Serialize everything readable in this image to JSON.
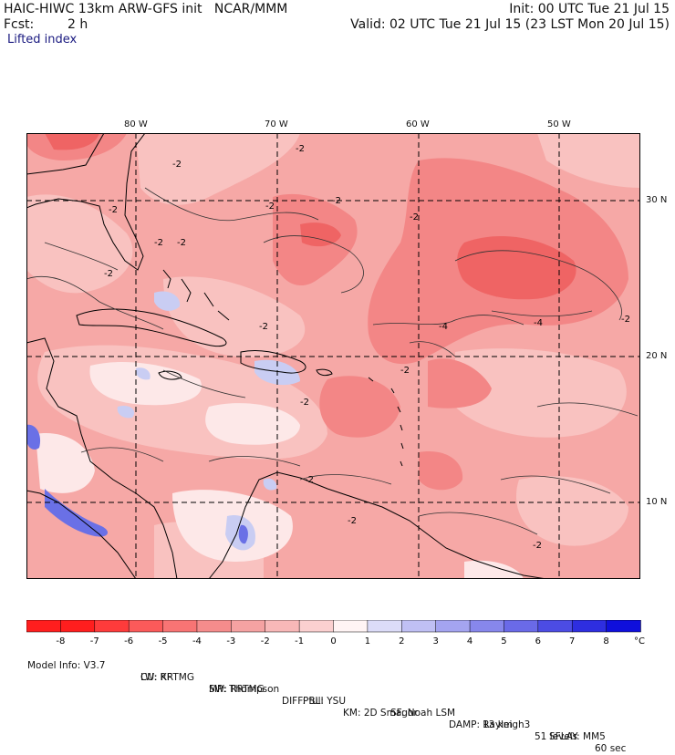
{
  "header": {
    "title_left": "HAIC-HIWC 13km ARW-GFS init   NCAR/MMM",
    "fcst_label": "Fcst:",
    "fcst_value": "2 h",
    "field_name": "Lifted index",
    "init": "Init: 00 UTC Tue 21 Jul 15",
    "valid": "Valid: 02 UTC Tue 21 Jul 15 (23 LST Mon 20 Jul 15)"
  },
  "map": {
    "lon_labels": [
      "80 W",
      "70 W",
      "60 W",
      "50 W"
    ],
    "lat_labels": [
      "30 N",
      "20 N",
      "10 N"
    ],
    "contour_labels": [
      "-2",
      "-2",
      "-2",
      "-2",
      "-2",
      "-2",
      "-2",
      "-2",
      "-2",
      "-2",
      "-2",
      "-2",
      "-4",
      "-4",
      "-2",
      "-2",
      "-2",
      "-2"
    ],
    "colors": {
      "land_outline": "#000000",
      "grid": "#000000",
      "background": "#f6a8a6"
    }
  },
  "colorbar": {
    "ticks": [
      "-8",
      "-7",
      "-6",
      "-5",
      "-4",
      "-3",
      "-2",
      "-1",
      "0",
      "1",
      "2",
      "3",
      "4",
      "5",
      "6",
      "7",
      "8"
    ],
    "unit": "°C",
    "colors": [
      "#ff1e1e",
      "#fe3b3b",
      "#fb5a5a",
      "#f87474",
      "#f58c8c",
      "#f5a2a2",
      "#f8b8b8",
      "#fbd0d0",
      "#fff4f4",
      "#dcdcf8",
      "#c0c0f4",
      "#a4a4f0",
      "#8787ec",
      "#6a6ae8",
      "#4c4ce4",
      "#2e2ee0",
      "#0f0fdc"
    ]
  },
  "model_info": {
    "line1": [
      "Model Info: V3.7",
      "CU: KF",
      "MP: Thompson",
      "PBL: YSU",
      "SF: Noah LSM",
      "13 km",
      "51 levels",
      "60 sec"
    ],
    "line2": [
      "LW: RRTMG",
      "SW: RRTMG",
      "DIFF: full",
      "KM: 2D Smagor",
      "DAMP: Rayleigh3",
      "SFLAY: MM5"
    ]
  }
}
